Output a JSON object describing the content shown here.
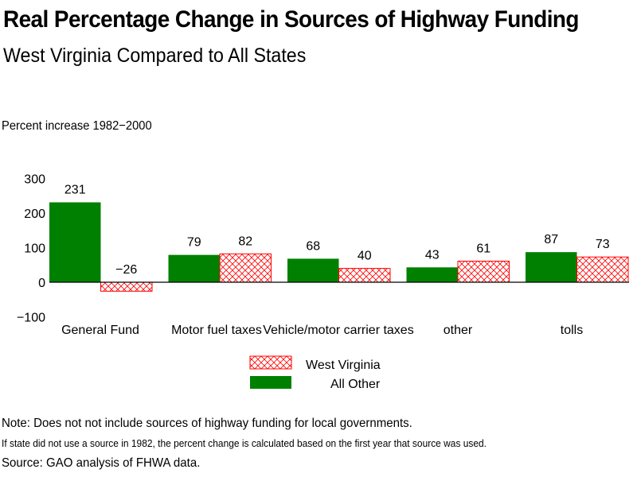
{
  "title": "Real Percentage Change in Sources of Highway Funding",
  "subtitle": "West Virginia Compared to All States",
  "notes": {
    "note": "Note: Does not not include sources of highway funding for local governments.",
    "caveat": "If state did not use a source in 1982, the percent change is calculated based on the first year that source was used.",
    "source": "Source: GAO analysis of FHWA data."
  },
  "colors": {
    "all_other": "#008000",
    "west_virginia": "#ff0000"
  },
  "chart_data": {
    "type": "bar",
    "title": "Real Percentage Change in Sources of Highway Funding",
    "subtitle": "West Virginia Compared to All States",
    "ylabel": "Percent increase 1982−2000",
    "xlabel": "",
    "ylim": [
      -100,
      300
    ],
    "yticks": [
      300,
      200,
      100,
      0,
      -100
    ],
    "ytick_labels": [
      "300",
      "200",
      "100",
      "0",
      "−100"
    ],
    "grid": false,
    "legend_position": "bottom-center",
    "categories": [
      "General Fund",
      "Motor fuel taxes",
      "Vehicle/motor carrier taxes",
      "other",
      "tolls"
    ],
    "series": [
      {
        "name": "All Other",
        "pattern": "solid",
        "values": [
          231,
          79,
          68,
          43,
          87
        ],
        "labels": [
          "231",
          "79",
          "68",
          "43",
          "87"
        ]
      },
      {
        "name": "West Virginia",
        "pattern": "crosshatch",
        "values": [
          -26,
          82,
          40,
          61,
          73
        ],
        "labels": [
          "−26",
          "82",
          "40",
          "61",
          "73"
        ]
      }
    ],
    "legend": [
      "West Virginia",
      "All Other"
    ]
  }
}
